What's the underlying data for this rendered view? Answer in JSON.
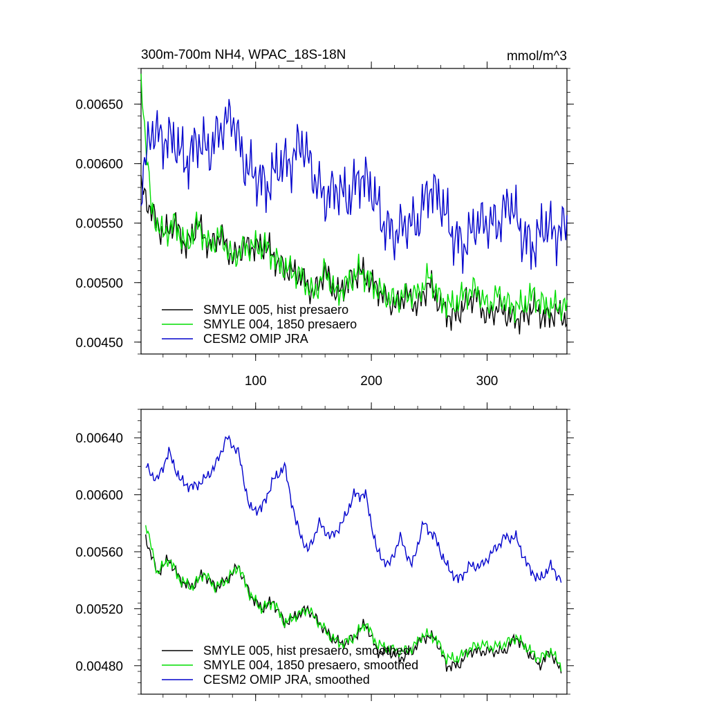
{
  "chart_data": [
    {
      "type": "line",
      "title": "300m-700m NH4, WPAC_18S-18N",
      "units": "mmol/m^3",
      "xlabel": "",
      "ylabel": "",
      "xlim": [
        1,
        369
      ],
      "ylim": [
        0.0044,
        0.0068
      ],
      "x_ticks": [
        100,
        200,
        300
      ],
      "x_tick_labels": [
        "100",
        "200",
        "300"
      ],
      "y_ticks": [
        0.0045,
        0.005,
        0.0055,
        0.006,
        0.0065
      ],
      "y_tick_labels": [
        "0.00450",
        "0.00500",
        "0.00550",
        "0.00600",
        "0.00650"
      ],
      "legend_position": "bottom-left",
      "series": [
        {
          "name": "SMYLE 005, hist presaero",
          "color": "#000000",
          "x": [
            1,
            10,
            20,
            30,
            40,
            50,
            60,
            70,
            80,
            90,
            100,
            110,
            120,
            130,
            140,
            150,
            160,
            170,
            180,
            190,
            200,
            210,
            220,
            230,
            240,
            250,
            260,
            270,
            280,
            290,
            300,
            310,
            320,
            330,
            340,
            350,
            360,
            369
          ],
          "values": [
            0.0058,
            0.0056,
            0.0054,
            0.0055,
            0.0053,
            0.0055,
            0.0053,
            0.0054,
            0.0052,
            0.0053,
            0.0053,
            0.0053,
            0.00515,
            0.0051,
            0.00505,
            0.0049,
            0.0051,
            0.0049,
            0.005,
            0.0051,
            0.005,
            0.0049,
            0.0048,
            0.0049,
            0.0048,
            0.005,
            0.0048,
            0.0047,
            0.0048,
            0.0049,
            0.0047,
            0.0048,
            0.0047,
            0.0047,
            0.0048,
            0.0047,
            0.00475,
            0.0047
          ]
        },
        {
          "name": "SMYLE 004, 1850 presaero",
          "color": "#00dd00",
          "x": [
            1,
            10,
            20,
            30,
            40,
            50,
            60,
            70,
            80,
            90,
            100,
            110,
            120,
            130,
            140,
            150,
            160,
            170,
            180,
            190,
            200,
            210,
            220,
            230,
            240,
            250,
            260,
            270,
            280,
            290,
            300,
            310,
            320,
            330,
            340,
            350,
            360,
            369
          ],
          "values": [
            0.0067,
            0.0056,
            0.0054,
            0.0055,
            0.0053,
            0.0055,
            0.0053,
            0.0054,
            0.0052,
            0.0053,
            0.0053,
            0.0053,
            0.00515,
            0.0051,
            0.00505,
            0.0049,
            0.0051,
            0.0049,
            0.005,
            0.0051,
            0.005,
            0.0049,
            0.00485,
            0.0049,
            0.0049,
            0.00505,
            0.00485,
            0.0048,
            0.0049,
            0.00495,
            0.0048,
            0.0049,
            0.0048,
            0.0048,
            0.0049,
            0.0048,
            0.0048,
            0.0048
          ]
        },
        {
          "name": "CESM2 OMIP JRA",
          "color": "#0000cc",
          "x": [
            1,
            10,
            20,
            30,
            40,
            50,
            60,
            70,
            80,
            90,
            100,
            110,
            120,
            130,
            140,
            150,
            160,
            170,
            180,
            190,
            200,
            210,
            220,
            230,
            240,
            250,
            260,
            270,
            280,
            290,
            300,
            310,
            320,
            330,
            340,
            350,
            360,
            369
          ],
          "values": [
            0.0058,
            0.0063,
            0.0062,
            0.0062,
            0.006,
            0.0062,
            0.0061,
            0.0063,
            0.0064,
            0.006,
            0.0059,
            0.0058,
            0.006,
            0.006,
            0.0062,
            0.0059,
            0.0057,
            0.0058,
            0.0057,
            0.0059,
            0.0058,
            0.0055,
            0.0054,
            0.0055,
            0.0055,
            0.0058,
            0.0057,
            0.0054,
            0.0053,
            0.0055,
            0.0055,
            0.0055,
            0.0057,
            0.0054,
            0.0053,
            0.0055,
            0.0054,
            0.0055
          ]
        }
      ]
    },
    {
      "type": "line",
      "title": "",
      "xlabel": "",
      "ylabel": "",
      "xlim": [
        1,
        369
      ],
      "ylim": [
        0.0046,
        0.0066
      ],
      "x_ticks": [
        100,
        200,
        300
      ],
      "x_tick_labels": [
        "",
        "",
        ""
      ],
      "y_ticks": [
        0.0048,
        0.0052,
        0.0056,
        0.006,
        0.0064
      ],
      "y_tick_labels": [
        "0.00480",
        "0.00520",
        "0.00560",
        "0.00600",
        "0.00640"
      ],
      "legend_position": "bottom-left",
      "series": [
        {
          "name": "SMYLE 005, hist presaero, smoothed",
          "color": "#000000",
          "x": [
            5,
            15,
            25,
            35,
            45,
            55,
            65,
            75,
            85,
            95,
            105,
            115,
            125,
            135,
            145,
            155,
            165,
            175,
            185,
            195,
            205,
            215,
            225,
            235,
            245,
            255,
            265,
            275,
            285,
            295,
            305,
            315,
            325,
            335,
            345,
            355,
            364
          ],
          "values": [
            0.0057,
            0.00545,
            0.00555,
            0.0054,
            0.00535,
            0.00545,
            0.00535,
            0.0054,
            0.0055,
            0.0053,
            0.0052,
            0.00525,
            0.0051,
            0.00515,
            0.0052,
            0.0051,
            0.005,
            0.00495,
            0.005,
            0.0051,
            0.0049,
            0.0049,
            0.00485,
            0.0049,
            0.005,
            0.005,
            0.0048,
            0.0048,
            0.0049,
            0.0049,
            0.0049,
            0.0049,
            0.005,
            0.0049,
            0.0048,
            0.0049,
            0.00475
          ]
        },
        {
          "name": "SMYLE 004, 1850 presaero, smoothed",
          "color": "#00dd00",
          "x": [
            5,
            15,
            25,
            35,
            45,
            55,
            65,
            75,
            85,
            95,
            105,
            115,
            125,
            135,
            145,
            155,
            165,
            175,
            185,
            195,
            205,
            215,
            225,
            235,
            245,
            255,
            265,
            275,
            285,
            295,
            305,
            315,
            325,
            335,
            345,
            355,
            364
          ],
          "values": [
            0.0058,
            0.00545,
            0.00555,
            0.0054,
            0.00535,
            0.00545,
            0.00535,
            0.0054,
            0.0055,
            0.0053,
            0.0052,
            0.00525,
            0.0051,
            0.00515,
            0.0052,
            0.0051,
            0.005,
            0.00495,
            0.005,
            0.0051,
            0.00495,
            0.00492,
            0.0049,
            0.00492,
            0.00502,
            0.005,
            0.00485,
            0.00485,
            0.00492,
            0.00495,
            0.00493,
            0.00495,
            0.005,
            0.00492,
            0.00485,
            0.0049,
            0.0048
          ]
        },
        {
          "name": "CESM2 OMIP JRA, smoothed",
          "color": "#0000cc",
          "x": [
            5,
            15,
            25,
            35,
            45,
            55,
            65,
            75,
            85,
            95,
            105,
            115,
            125,
            135,
            145,
            155,
            165,
            175,
            185,
            195,
            205,
            215,
            225,
            235,
            245,
            255,
            265,
            275,
            285,
            295,
            305,
            315,
            325,
            335,
            345,
            355,
            364
          ],
          "values": [
            0.0062,
            0.0061,
            0.0063,
            0.0061,
            0.00605,
            0.0061,
            0.0062,
            0.0064,
            0.0063,
            0.0059,
            0.0059,
            0.0061,
            0.0062,
            0.0058,
            0.0056,
            0.0058,
            0.0057,
            0.0058,
            0.006,
            0.006,
            0.0056,
            0.0055,
            0.0057,
            0.0055,
            0.0058,
            0.0057,
            0.0055,
            0.0054,
            0.0055,
            0.0055,
            0.0056,
            0.0057,
            0.0057,
            0.0055,
            0.0054,
            0.0055,
            0.0054
          ]
        }
      ]
    }
  ]
}
